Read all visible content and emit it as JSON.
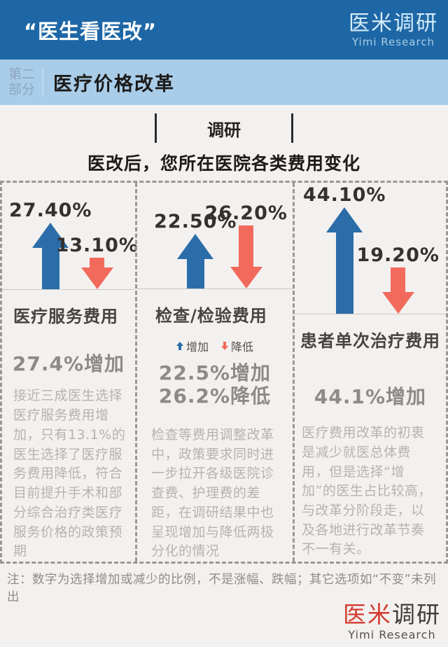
{
  "header": {
    "title": "“医生看医改”",
    "logo_cn": "医米调研",
    "logo_en": "Yimi Research"
  },
  "section": {
    "part_line1": "第二",
    "part_line2": "部分",
    "title": "医疗价格改革"
  },
  "survey": {
    "tag": "调研",
    "question": "医改后，您所在医院各类费用变化"
  },
  "chart_data": {
    "type": "bar",
    "title": "医改后，您所在医院各类费用变化",
    "categories": [
      "医疗服务费用",
      "检查/检验费用",
      "患者单次治疗费用"
    ],
    "series": [
      {
        "name": "增加",
        "values": [
          27.4,
          22.5,
          44.1
        ],
        "color": "#2b6da8"
      },
      {
        "name": "降低",
        "values": [
          13.1,
          26.2,
          19.2
        ],
        "color": "#f26a5c"
      }
    ],
    "unit": "%",
    "ylim": [
      0,
      50
    ],
    "legend_position": "middle-column-below-category",
    "note": "数字为选择增加或减少的比例，不是涨幅、跌幅"
  },
  "columns": [
    {
      "up_label": "27.40%",
      "down_label": "13.10%",
      "category": "医疗服务费用",
      "summary_line1": "27.4%增加",
      "paragraph": "接近三成医生选择医疗服务费用增加，只有13.1%的医生选择了医疗服务费用降低，符合目前提升手术和部分综合治疗类医疗服务价格的政策预期"
    },
    {
      "up_label": "22.50%",
      "down_label": "26.20%",
      "category": "检查/检验费用",
      "legend_up": "增加",
      "legend_down": "降低",
      "summary_line1": "22.5%增加",
      "summary_line2": "26.2%降低",
      "paragraph": "检查等费用调整改革中，政策要求同时进一步拉开各级医院诊查费、护理费的差距，在调研结果中也呈现增加与降低两极分化的情况"
    },
    {
      "up_label": "44.10%",
      "down_label": "19.20%",
      "category": "患者单次治疗费用",
      "summary_line1": "44.1%增加",
      "paragraph": "医疗费用改革的初衷是减少就医总体费用，但是选择“增加”的医生占比较高，与改革分阶段走，以及各地进行改革节奏不一有关。"
    }
  ],
  "footnote": "注：数字为选择增加或减少的比例，不是涨幅、跌幅；其它选项如“不变”未列出",
  "footer": {
    "logo_cn_red": "医米",
    "logo_cn_dark": "调研",
    "logo_en": "Yimi Research"
  },
  "colors": {
    "header_bg": "#1e67a6",
    "band_bg": "#a9cde9",
    "page_bg": "#f3f1ef",
    "up_arrow": "#2b6da8",
    "down_arrow": "#f26a5c",
    "logo_red": "#d53a2f"
  }
}
